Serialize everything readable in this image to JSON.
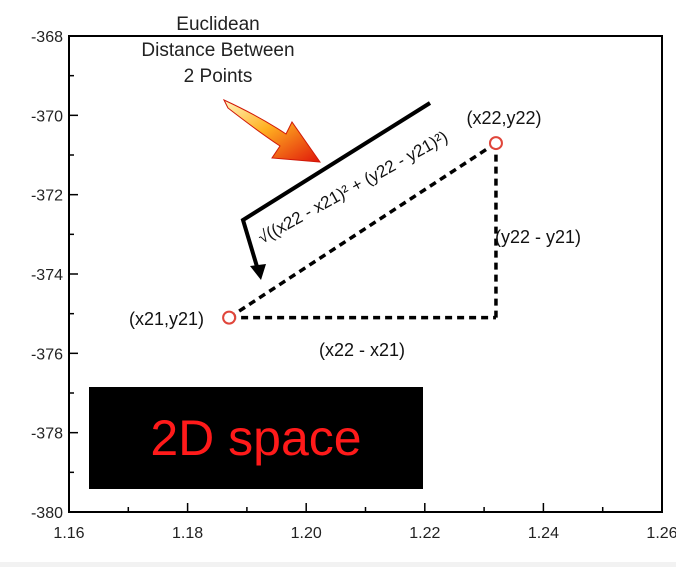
{
  "chart_data": {
    "type": "scatter",
    "xlim": [
      1.16,
      1.26
    ],
    "ylim": [
      -380,
      -368
    ],
    "x_ticks": [
      "1.16",
      "1.18",
      "1.20",
      "1.22",
      "1.24",
      "1.26"
    ],
    "y_ticks": [
      "-368",
      "-370",
      "-372",
      "-374",
      "-376",
      "-378",
      "-380"
    ],
    "x_tick_values": [
      1.16,
      1.18,
      1.2,
      1.22,
      1.24,
      1.26
    ],
    "y_tick_values": [
      -368,
      -370,
      -372,
      -374,
      -376,
      -378,
      -380
    ],
    "grid": false,
    "points": [
      {
        "x": 1.187,
        "y": -375.1
      },
      {
        "x": 1.232,
        "y": -370.7
      }
    ],
    "annotations": {
      "title_lines": [
        "Euclidean",
        "Distance Between",
        "2 Points"
      ],
      "formula": "√((x22 - x21)² + (y22 - y21)²)",
      "point1_label": "(x21,y21)",
      "point2_label": "(x22,y22)",
      "dx_label": "(x22 - x21)",
      "dy_label": "(y22 - y21)",
      "space_label": "2D space"
    },
    "colors": {
      "point_marker": "#e0453a",
      "arrow": "#e02a10",
      "banner_bg": "#000000",
      "banner_text": "#ff1a1a"
    }
  }
}
